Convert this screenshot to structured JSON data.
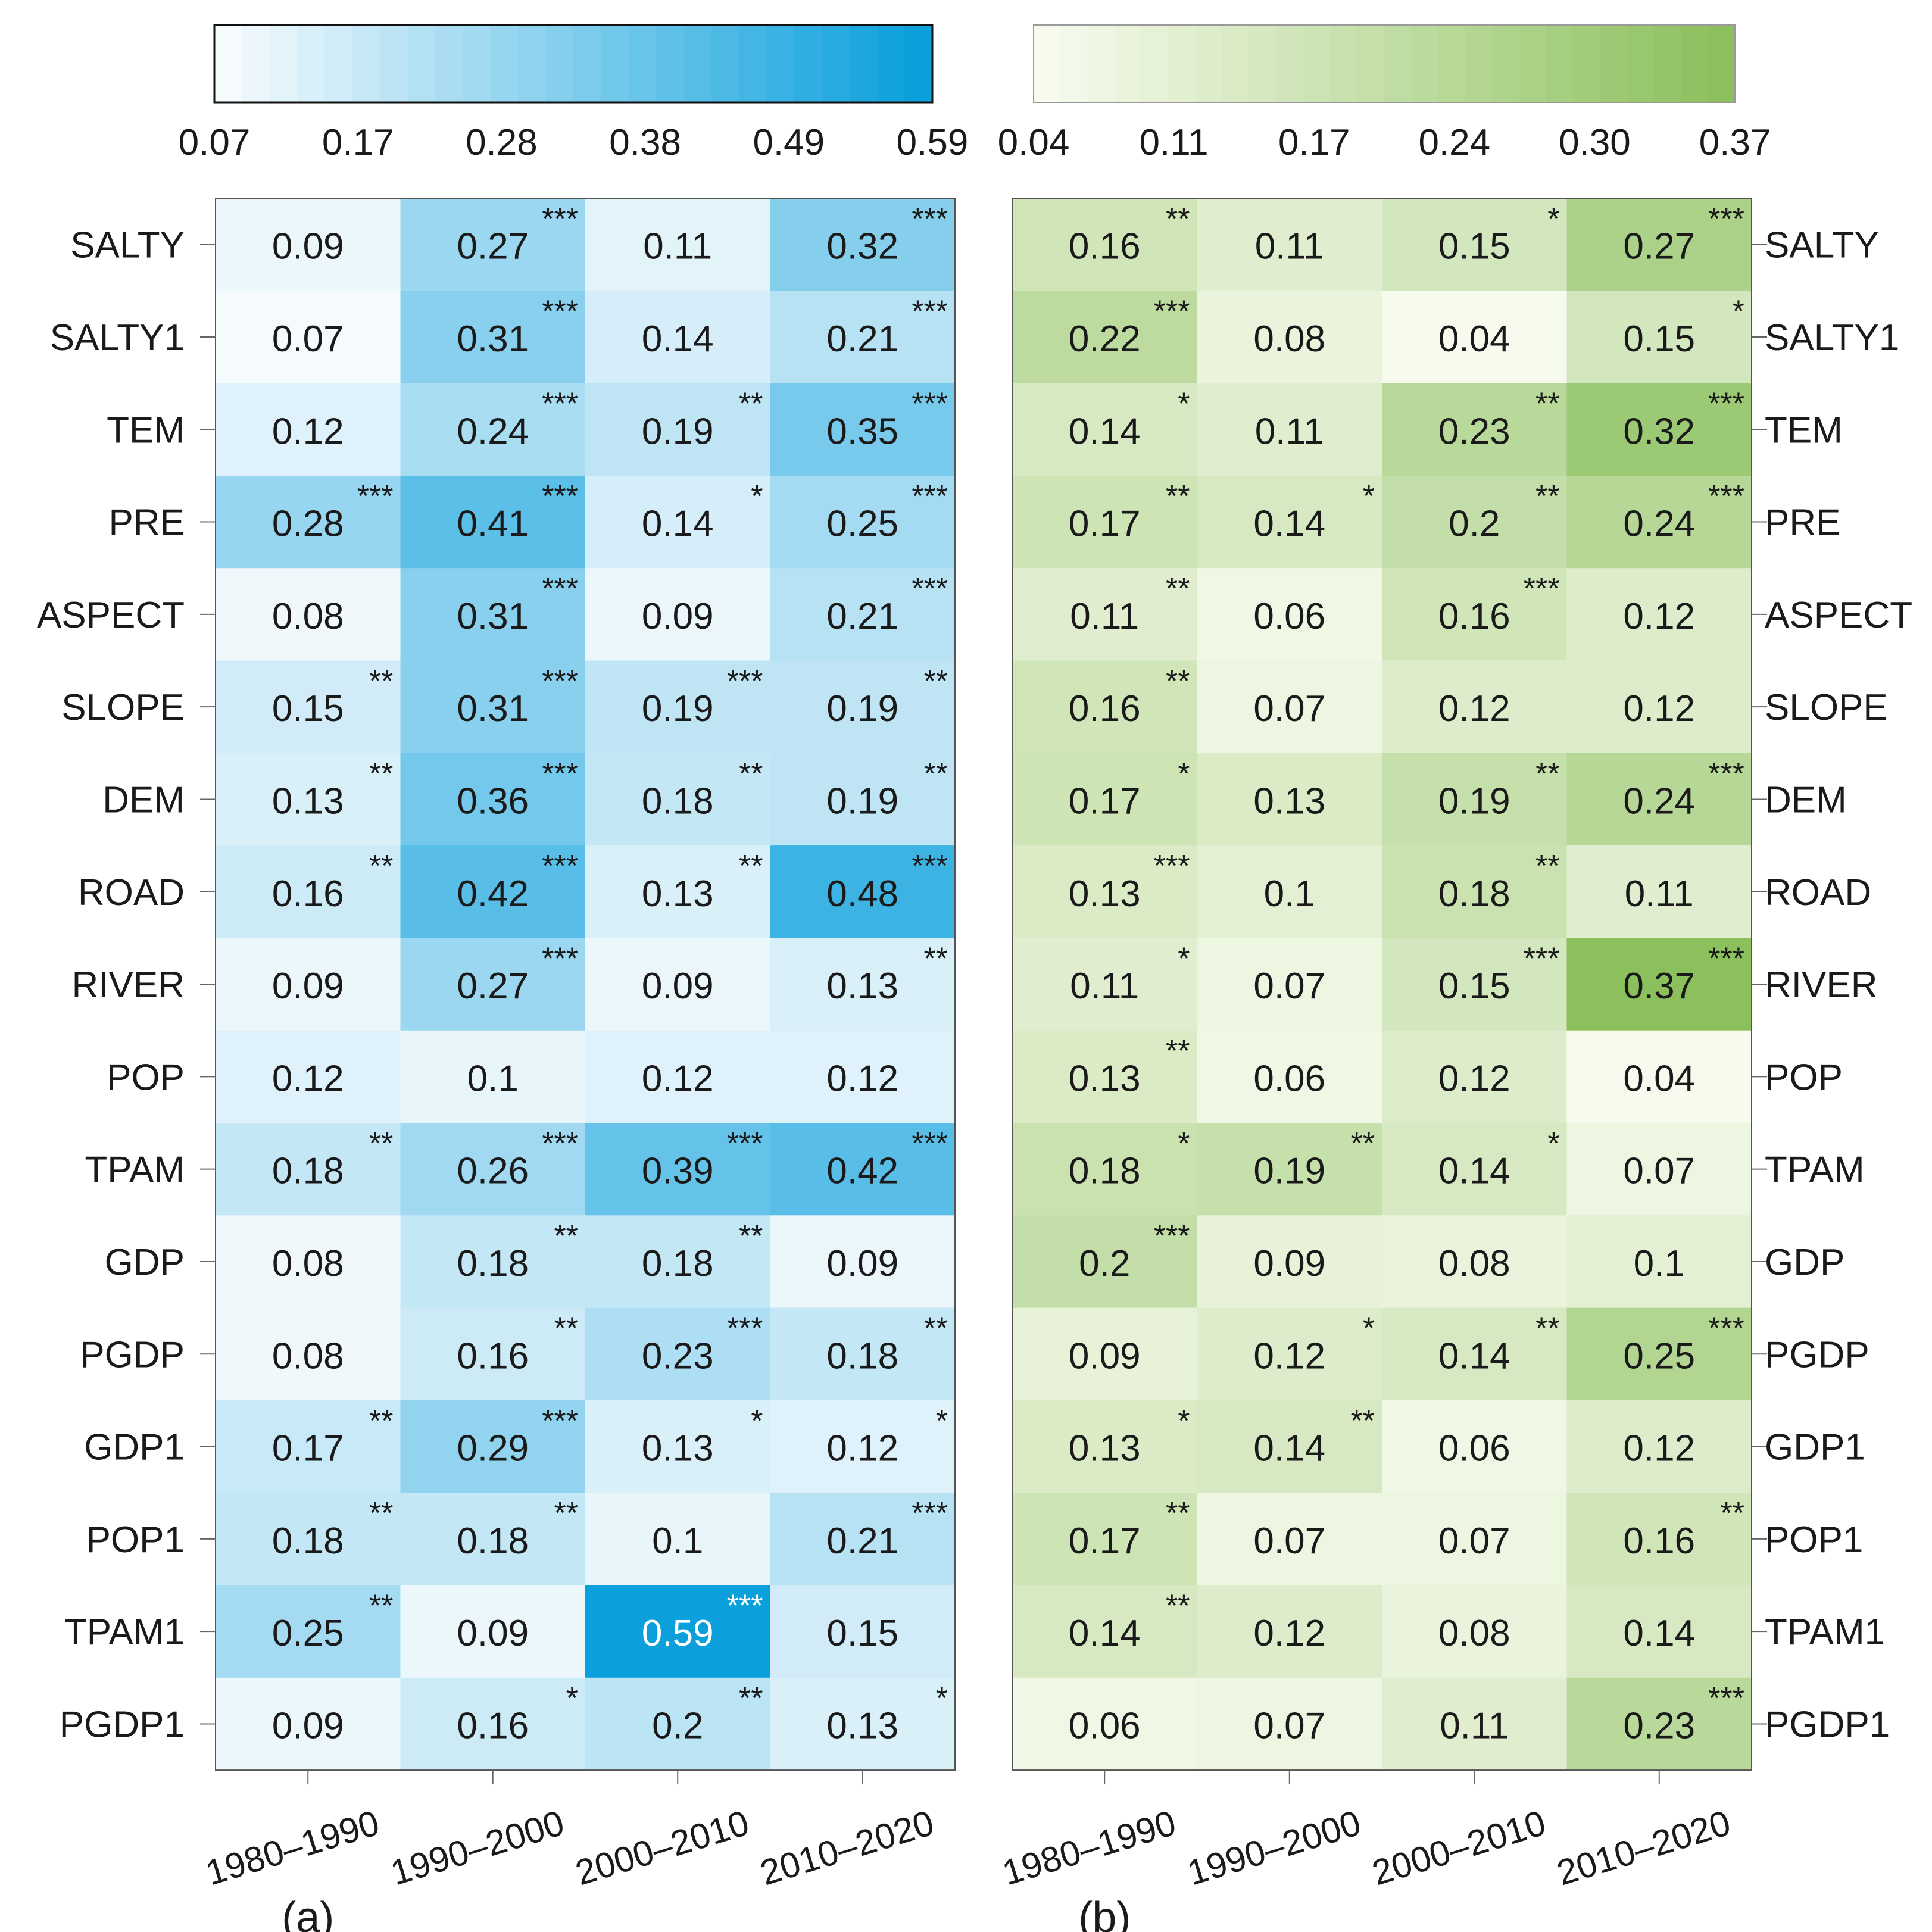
{
  "chart_data": [
    {
      "type": "heatmap",
      "panel_label": "(a)",
      "rows": [
        "SALTY",
        "SALTY1",
        "TEM",
        "PRE",
        "ASPECT",
        "SLOPE",
        "DEM",
        "ROAD",
        "RIVER",
        "POP",
        "TPAM",
        "GDP",
        "PGDP",
        "GDP1",
        "POP1",
        "TPAM1",
        "PGDP1"
      ],
      "columns": [
        "1980–1990",
        "1990–2000",
        "2000–2010",
        "2010–2020"
      ],
      "values": [
        [
          0.09,
          0.27,
          0.11,
          0.32
        ],
        [
          0.07,
          0.31,
          0.14,
          0.21
        ],
        [
          0.12,
          0.24,
          0.19,
          0.35
        ],
        [
          0.28,
          0.41,
          0.14,
          0.25
        ],
        [
          0.08,
          0.31,
          0.09,
          0.21
        ],
        [
          0.15,
          0.31,
          0.19,
          0.19
        ],
        [
          0.13,
          0.36,
          0.18,
          0.19
        ],
        [
          0.16,
          0.42,
          0.13,
          0.48
        ],
        [
          0.09,
          0.27,
          0.09,
          0.13
        ],
        [
          0.12,
          0.1,
          0.12,
          0.12
        ],
        [
          0.18,
          0.26,
          0.39,
          0.42
        ],
        [
          0.08,
          0.18,
          0.18,
          0.09
        ],
        [
          0.08,
          0.16,
          0.23,
          0.18
        ],
        [
          0.17,
          0.29,
          0.13,
          0.12
        ],
        [
          0.18,
          0.18,
          0.1,
          0.21
        ],
        [
          0.25,
          0.09,
          0.59,
          0.15
        ],
        [
          0.09,
          0.16,
          0.2,
          0.13
        ]
      ],
      "significance": [
        [
          "",
          "***",
          "",
          "***"
        ],
        [
          "",
          "***",
          "",
          "***"
        ],
        [
          "",
          "***",
          "**",
          "***"
        ],
        [
          "***",
          "***",
          "*",
          "***"
        ],
        [
          "",
          "***",
          "",
          "***"
        ],
        [
          "**",
          "***",
          "***",
          "**"
        ],
        [
          "**",
          "***",
          "**",
          "**"
        ],
        [
          "**",
          "***",
          "**",
          "***"
        ],
        [
          "",
          "***",
          "",
          "**"
        ],
        [
          "",
          "",
          "",
          ""
        ],
        [
          "**",
          "***",
          "***",
          "***"
        ],
        [
          "",
          "**",
          "**",
          ""
        ],
        [
          "",
          "**",
          "***",
          "**"
        ],
        [
          "**",
          "***",
          "*",
          "*"
        ],
        [
          "**",
          "**",
          "",
          "***"
        ],
        [
          "**",
          "",
          "***",
          ""
        ],
        [
          "",
          "*",
          "**",
          "*"
        ]
      ],
      "colorbar": {
        "ticks": [
          "0.07",
          "0.17",
          "0.28",
          "0.38",
          "0.49",
          "0.59"
        ],
        "range": [
          0.07,
          0.59
        ],
        "low_color": "#f5fafd",
        "high_color": "#0ba0dc"
      },
      "row_labels_side": "left"
    },
    {
      "type": "heatmap",
      "panel_label": "(b)",
      "rows": [
        "SALTY",
        "SALTY1",
        "TEM",
        "PRE",
        "ASPECT",
        "SLOPE",
        "DEM",
        "ROAD",
        "RIVER",
        "POP",
        "TPAM",
        "GDP",
        "PGDP",
        "GDP1",
        "POP1",
        "TPAM1",
        "PGDP1"
      ],
      "columns": [
        "1980–1990",
        "1990–2000",
        "2000–2010",
        "2010–2020"
      ],
      "values": [
        [
          0.16,
          0.11,
          0.15,
          0.27
        ],
        [
          0.22,
          0.08,
          0.04,
          0.15
        ],
        [
          0.14,
          0.11,
          0.23,
          0.32
        ],
        [
          0.17,
          0.14,
          0.2,
          0.24
        ],
        [
          0.11,
          0.06,
          0.16,
          0.12
        ],
        [
          0.16,
          0.07,
          0.12,
          0.12
        ],
        [
          0.17,
          0.13,
          0.19,
          0.24
        ],
        [
          0.13,
          0.1,
          0.18,
          0.11
        ],
        [
          0.11,
          0.07,
          0.15,
          0.37
        ],
        [
          0.13,
          0.06,
          0.12,
          0.04
        ],
        [
          0.18,
          0.19,
          0.14,
          0.07
        ],
        [
          0.2,
          0.09,
          0.08,
          0.1
        ],
        [
          0.09,
          0.12,
          0.14,
          0.25
        ],
        [
          0.13,
          0.14,
          0.06,
          0.12
        ],
        [
          0.17,
          0.07,
          0.07,
          0.16
        ],
        [
          0.14,
          0.12,
          0.08,
          0.14
        ],
        [
          0.06,
          0.07,
          0.11,
          0.23
        ]
      ],
      "significance": [
        [
          "**",
          "",
          "*",
          "***"
        ],
        [
          "***",
          "",
          "",
          "*"
        ],
        [
          "*",
          "",
          "**",
          "***"
        ],
        [
          "**",
          "*",
          "**",
          "***"
        ],
        [
          "**",
          "",
          "***",
          ""
        ],
        [
          "**",
          "",
          "",
          ""
        ],
        [
          "*",
          "",
          "**",
          "***"
        ],
        [
          "***",
          "",
          "**",
          ""
        ],
        [
          "*",
          "",
          "***",
          "***"
        ],
        [
          "**",
          "",
          "",
          ""
        ],
        [
          "*",
          "**",
          "*",
          ""
        ],
        [
          "***",
          "",
          "",
          ""
        ],
        [
          "",
          "*",
          "**",
          "***"
        ],
        [
          "*",
          "**",
          "",
          ""
        ],
        [
          "**",
          "",
          "",
          "**"
        ],
        [
          "**",
          "",
          "",
          ""
        ],
        [
          "",
          "",
          "",
          "***"
        ]
      ],
      "colorbar": {
        "ticks": [
          "0.04",
          "0.11",
          "0.17",
          "0.24",
          "0.30",
          "0.37"
        ],
        "range": [
          0.04,
          0.37
        ],
        "low_color": "#f7fbee",
        "high_color": "#8cc05d"
      },
      "row_labels_side": "right"
    }
  ]
}
